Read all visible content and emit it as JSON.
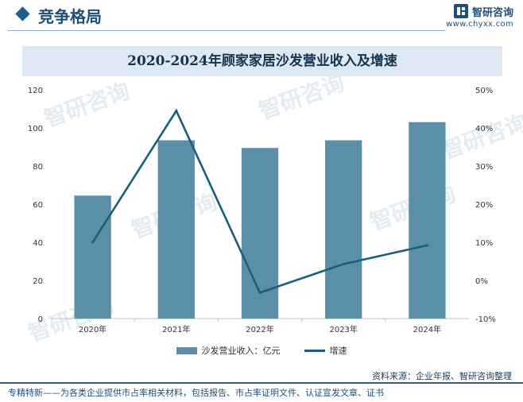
{
  "header": {
    "section_title": "竞争格局",
    "brand_name": "智研咨询",
    "brand_url": "www.chyxx.com"
  },
  "chart_data": {
    "type": "bar",
    "title": "2020-2024年顾家家居沙发营业收入及增速",
    "categories": [
      "2020年",
      "2021年",
      "2022年",
      "2023年",
      "2024年"
    ],
    "series": [
      {
        "name": "沙发营业收入：亿元",
        "type": "bar",
        "axis": "left",
        "values": [
          64.5,
          93.5,
          89.5,
          93.5,
          103
        ]
      },
      {
        "name": "增速",
        "type": "line",
        "axis": "right",
        "values": [
          10,
          44.5,
          -3.2,
          4.3,
          9.2
        ]
      }
    ],
    "y_left": {
      "min": 0,
      "max": 120,
      "ticks": [
        "0",
        "20",
        "40",
        "60",
        "80",
        "100",
        "120"
      ]
    },
    "y_right": {
      "min": -10,
      "max": 50,
      "ticks": [
        "-10%",
        "0%",
        "10%",
        "20%",
        "30%",
        "40%",
        "50%"
      ]
    },
    "colors": {
      "bar": "#5b8fa8",
      "line": "#1a5f7a"
    },
    "legend_position": "bottom",
    "grid": false
  },
  "source": "资料来源：企业年报、智研咨询整理",
  "footer": "专精特新——为各类企业提供市占率相关材料，包括报告、市占率证明文件、认证宣发文章、证书"
}
